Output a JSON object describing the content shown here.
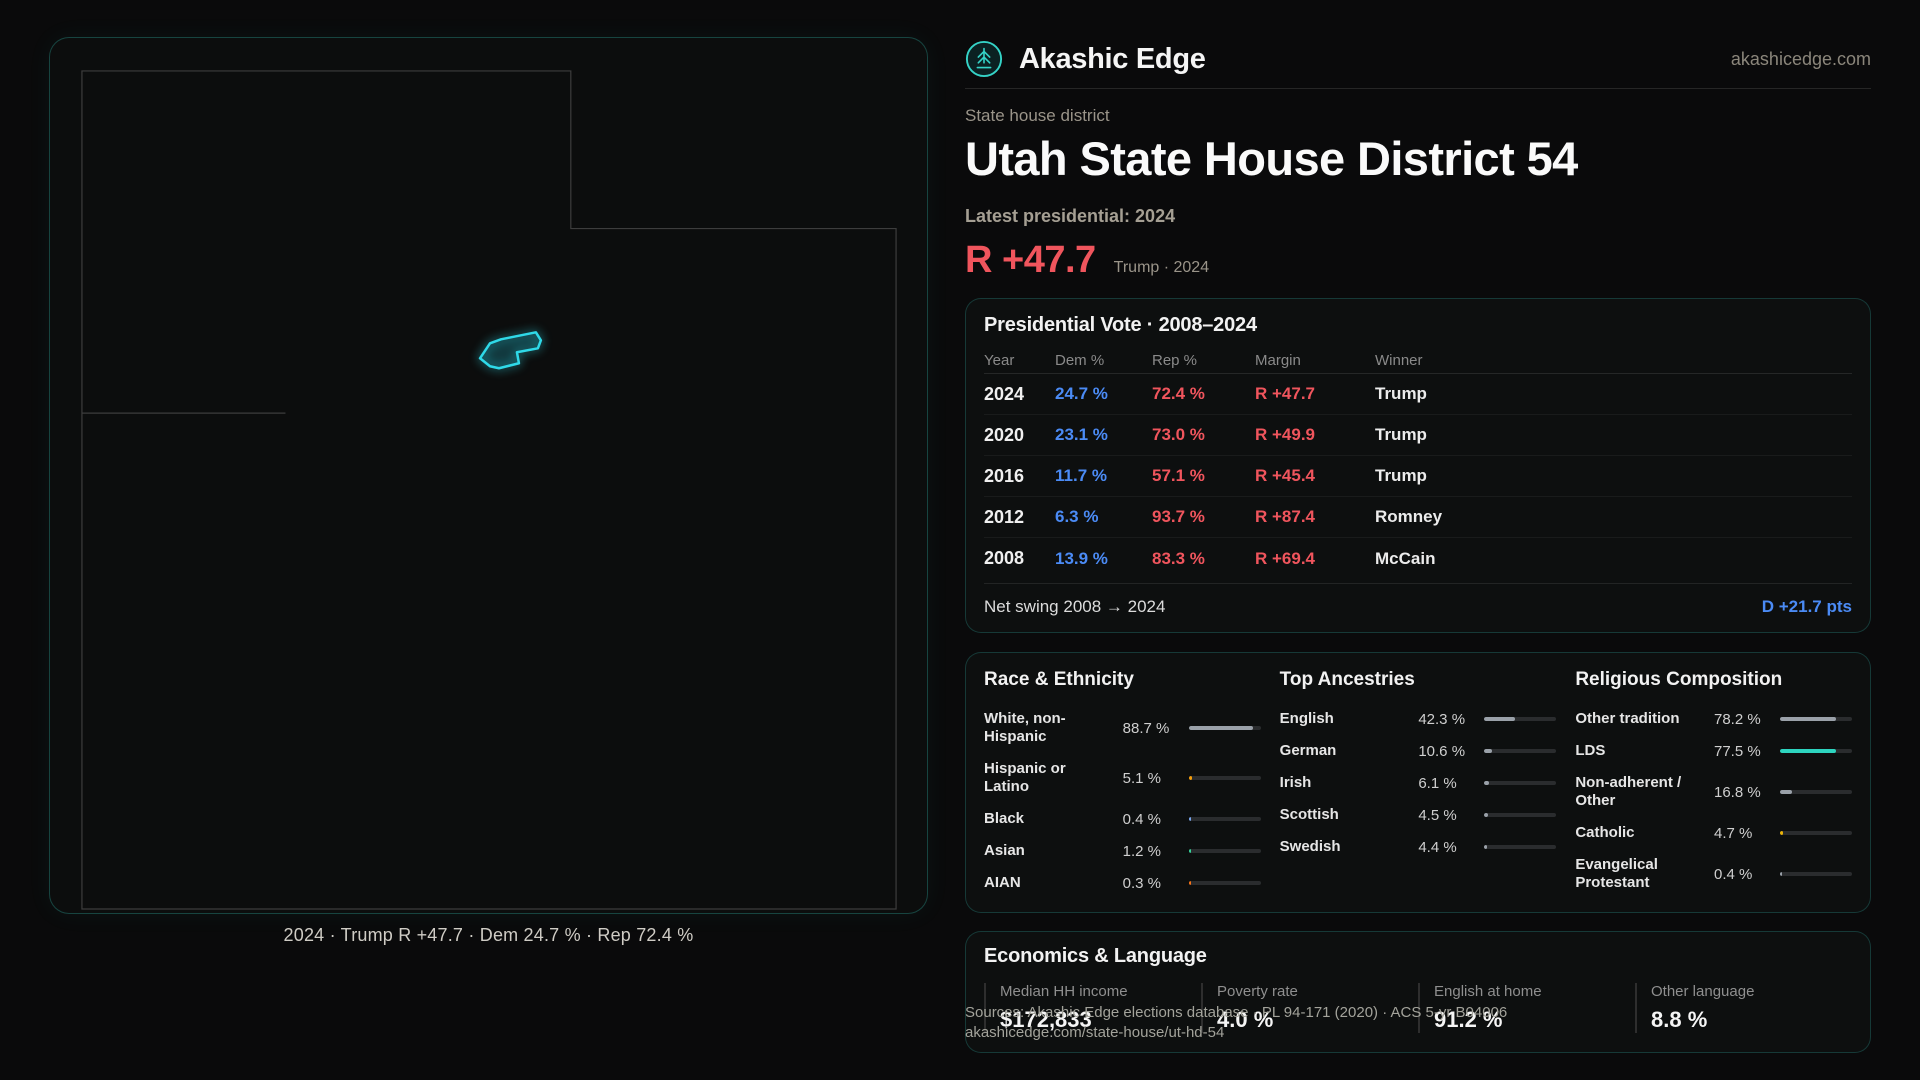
{
  "brand": {
    "name": "Akashic Edge",
    "domain": "akashicedge.com"
  },
  "page": {
    "eyebrow": "State house district",
    "title": "Utah State House District 54",
    "subtitle": "Latest presidential: 2024",
    "margin": "R +47.7",
    "margin_note": "Trump · 2024"
  },
  "map": {
    "caption": "2024 · Trump R +47.7 · Dem 24.7 % · Rep 72.4 %"
  },
  "presidential": {
    "title": "Presidential Vote · 2008–2024",
    "columns": [
      "Year",
      "Dem %",
      "Rep %",
      "Margin",
      "Winner"
    ],
    "rows": [
      {
        "year": "2024",
        "dem": "24.7 %",
        "rep": "72.4 %",
        "margin": "R +47.7",
        "winner": "Trump"
      },
      {
        "year": "2020",
        "dem": "23.1 %",
        "rep": "73.0 %",
        "margin": "R +49.9",
        "winner": "Trump"
      },
      {
        "year": "2016",
        "dem": "11.7 %",
        "rep": "57.1 %",
        "margin": "R +45.4",
        "winner": "Trump"
      },
      {
        "year": "2012",
        "dem": "6.3 %",
        "rep": "93.7 %",
        "margin": "R +87.4",
        "winner": "Romney"
      },
      {
        "year": "2008",
        "dem": "13.9 %",
        "rep": "83.3 %",
        "margin": "R +69.4",
        "winner": "McCain"
      }
    ],
    "net_swing_label": "Net swing 2008 → 2024",
    "net_swing_value": "D +21.7 pts"
  },
  "demographics": {
    "race": {
      "title": "Race & Ethnicity",
      "rows": [
        {
          "label": "White, non-Hispanic",
          "value": "88.7 %",
          "pct": 88.7,
          "color": "#9aa1a9"
        },
        {
          "label": "Hispanic or Latino",
          "value": "5.1 %",
          "pct": 5.1,
          "color": "#f59e0b"
        },
        {
          "label": "Black",
          "value": "0.4 %",
          "pct": 0.4,
          "color": "#7aa7f0"
        },
        {
          "label": "Asian",
          "value": "1.2 %",
          "pct": 1.2,
          "color": "#34d399"
        },
        {
          "label": "AIAN",
          "value": "0.3 %",
          "pct": 0.3,
          "color": "#f97316"
        }
      ]
    },
    "ancestries": {
      "title": "Top Ancestries",
      "rows": [
        {
          "label": "English",
          "value": "42.3 %",
          "pct": 42.3,
          "color": "#9aa1a9"
        },
        {
          "label": "German",
          "value": "10.6 %",
          "pct": 10.6,
          "color": "#9aa1a9"
        },
        {
          "label": "Irish",
          "value": "6.1 %",
          "pct": 6.1,
          "color": "#9aa1a9"
        },
        {
          "label": "Scottish",
          "value": "4.5 %",
          "pct": 4.5,
          "color": "#9aa1a9"
        },
        {
          "label": "Swedish",
          "value": "4.4 %",
          "pct": 4.4,
          "color": "#9aa1a9"
        }
      ]
    },
    "religion": {
      "title": "Religious Composition",
      "rows": [
        {
          "label": "Other tradition",
          "value": "78.2 %",
          "pct": 78.2,
          "color": "#9aa1a9"
        },
        {
          "label": "LDS",
          "value": "77.5 %",
          "pct": 77.5,
          "color": "#2dd4bf"
        },
        {
          "label": "Non-adherent / Other",
          "value": "16.8 %",
          "pct": 16.8,
          "color": "#9aa1a9"
        },
        {
          "label": "Catholic",
          "value": "4.7 %",
          "pct": 4.7,
          "color": "#eab308"
        },
        {
          "label": "Evangelical Protestant",
          "value": "0.4 %",
          "pct": 0.4,
          "color": "#9aa1a9"
        }
      ]
    }
  },
  "economics": {
    "title": "Economics & Language",
    "stats": [
      {
        "label": "Median HH income",
        "value": "$172,833"
      },
      {
        "label": "Poverty rate",
        "value": "4.0 %"
      },
      {
        "label": "English at home",
        "value": "91.2 %"
      },
      {
        "label": "Other language",
        "value": "8.8 %"
      }
    ]
  },
  "footer": {
    "sources": "Sources: Akashic Edge elections database · PL 94-171 (2020) · ACS 5-yr B04006",
    "url": "akashicedge.com/state-house/ut-hd-54"
  },
  "colors": {
    "accent": "#2dd4bf",
    "dem": "#4b8bf5",
    "rep": "#f0555d"
  }
}
